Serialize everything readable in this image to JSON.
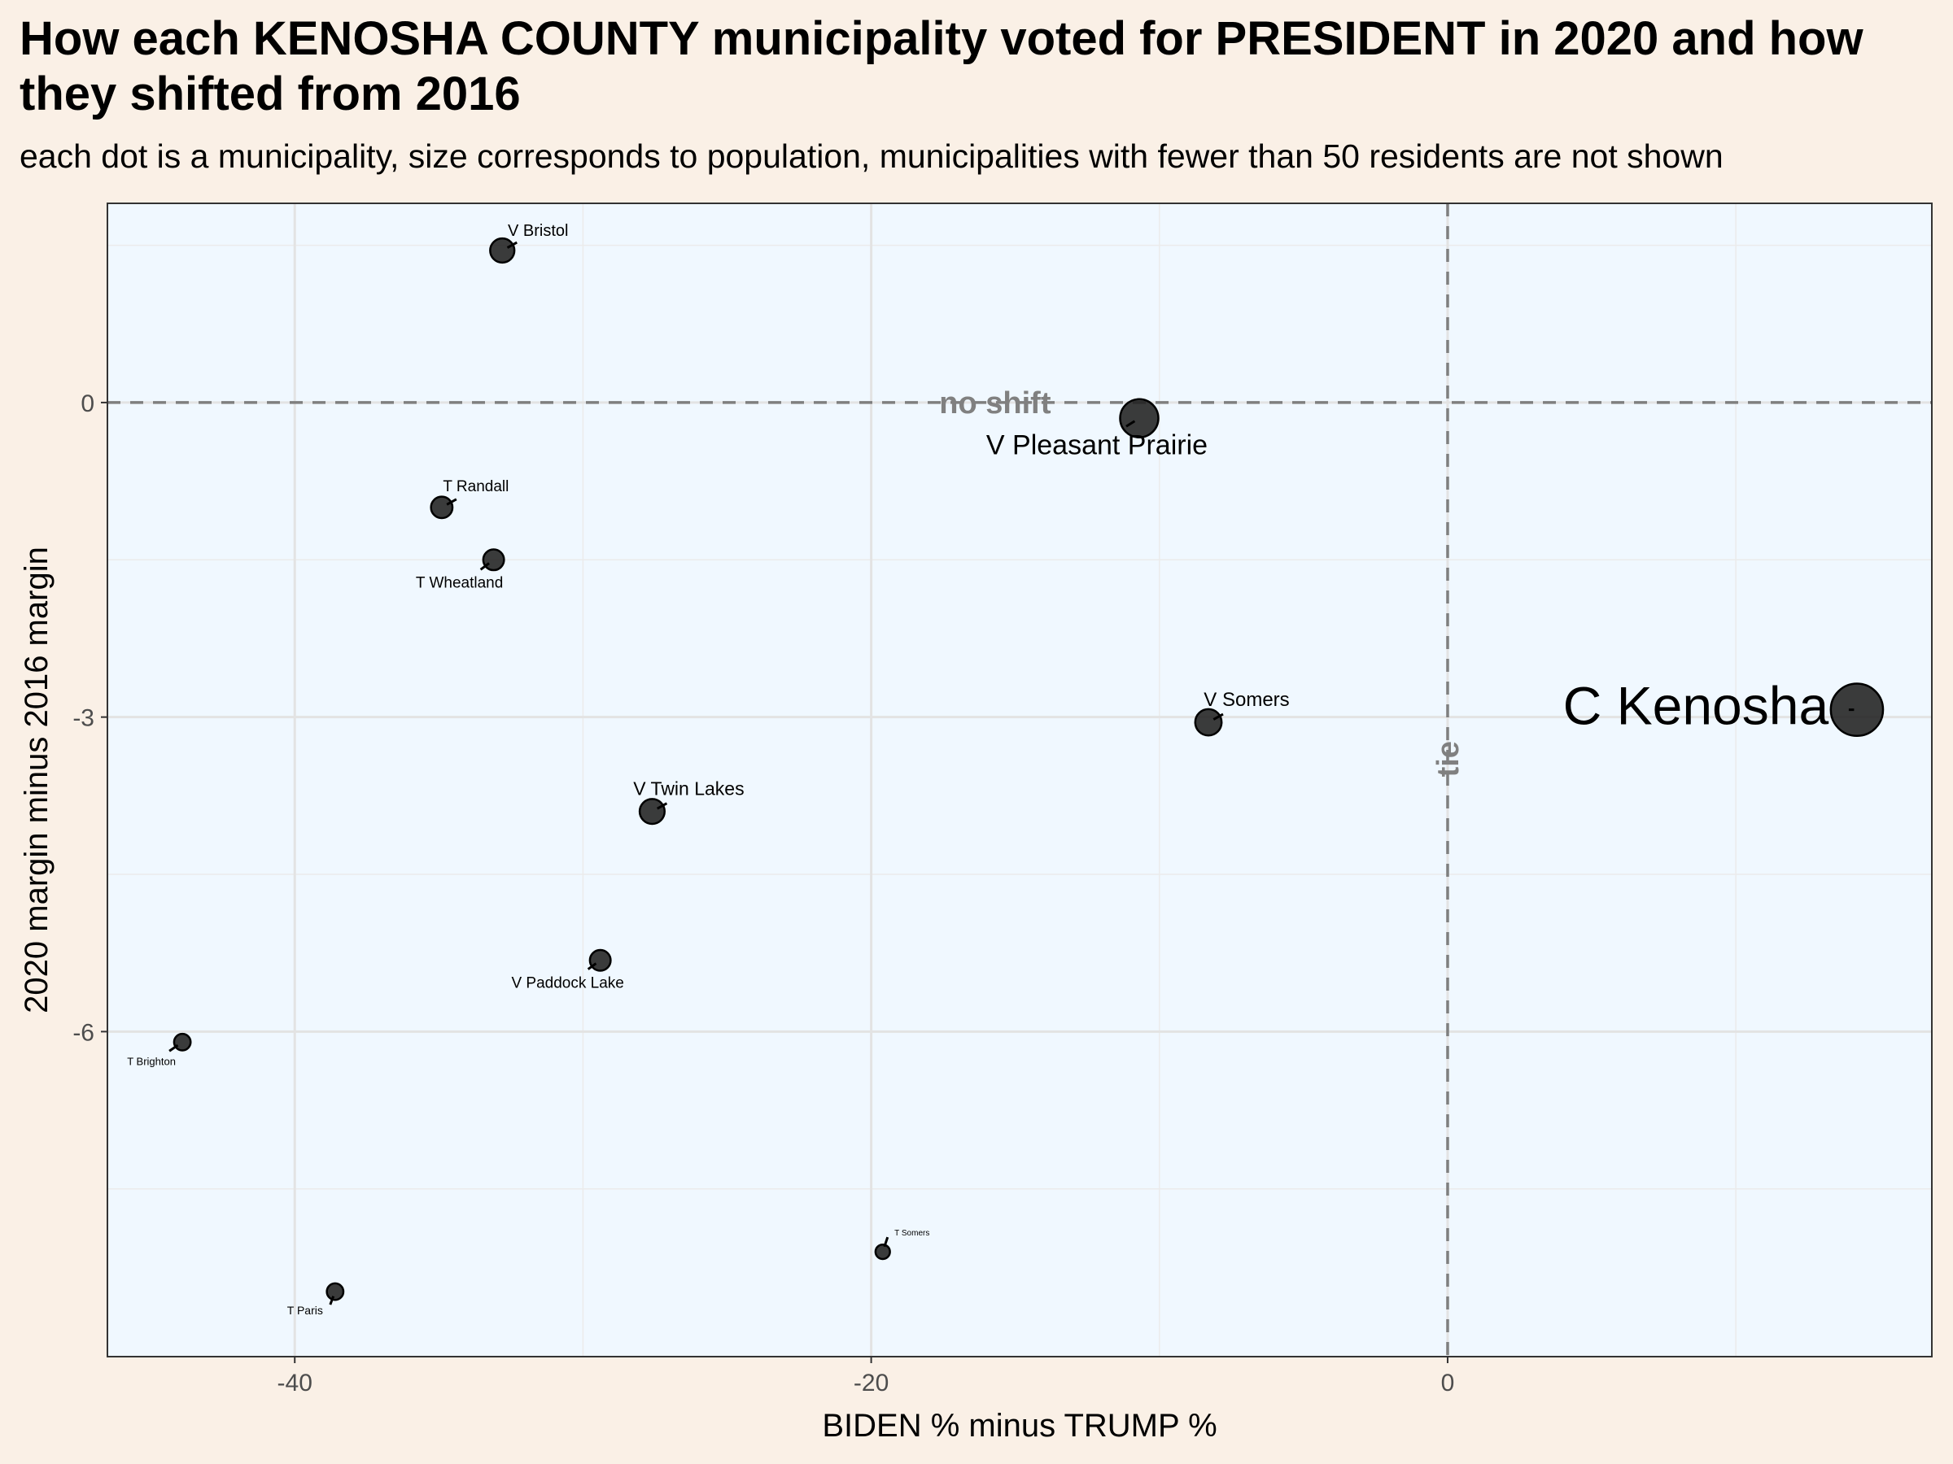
{
  "title": "How each KENOSHA COUNTY municipality voted for PRESIDENT in 2020 and how they shifted from 2016",
  "subtitle": "each dot is a municipality, size corresponds to population, municipalities with fewer than 50 residents are not shown",
  "chart_data": {
    "type": "scatter",
    "title": "How each KENOSHA COUNTY municipality voted for PRESIDENT in 2020 and how they shifted from 2016",
    "subtitle": "each dot is a municipality, size corresponds to population, municipalities with fewer than 50 residents are not shown",
    "xlabel": "BIDEN % minus TRUMP %",
    "ylabel": "2020 margin minus 2016 margin",
    "xlim": [
      -46.5,
      16.8
    ],
    "ylim": [
      -9.1,
      1.9
    ],
    "xticks": [
      -40,
      -20,
      0
    ],
    "yticks": [
      0,
      -3,
      -6
    ],
    "grid": true,
    "reference_lines": [
      {
        "axis": "y",
        "value": 0,
        "label": "no shift"
      },
      {
        "axis": "x",
        "value": 0,
        "label": "tie"
      }
    ],
    "points": [
      {
        "name": "V Bristol",
        "x": -32.8,
        "y": 1.45,
        "size": 3
      },
      {
        "name": "V Pleasant Prairie",
        "x": -10.7,
        "y": -0.15,
        "size": 5
      },
      {
        "name": "T Randall",
        "x": -34.9,
        "y": -1.0,
        "size": 2.6
      },
      {
        "name": "T Wheatland",
        "x": -33.1,
        "y": -1.5,
        "size": 2.5
      },
      {
        "name": "V Somers",
        "x": -8.3,
        "y": -3.05,
        "size": 3.3
      },
      {
        "name": "C Kenosha",
        "x": 14.2,
        "y": -2.93,
        "size": 7
      },
      {
        "name": "V Twin Lakes",
        "x": -27.6,
        "y": -3.9,
        "size": 3.1
      },
      {
        "name": "V Paddock Lake",
        "x": -29.4,
        "y": -5.32,
        "size": 2.5
      },
      {
        "name": "T Brighton",
        "x": -43.9,
        "y": -6.1,
        "size": 1.9
      },
      {
        "name": "T Somers",
        "x": -19.6,
        "y": -8.1,
        "size": 1.6
      },
      {
        "name": "T Paris",
        "x": -38.6,
        "y": -8.48,
        "size": 1.9
      }
    ]
  }
}
